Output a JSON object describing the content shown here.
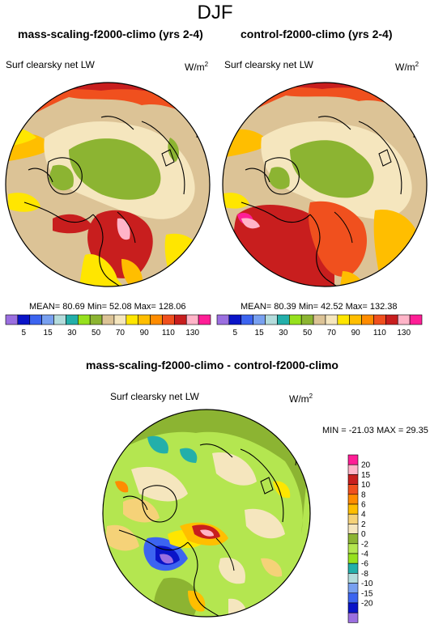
{
  "title": "DJF",
  "panels": [
    {
      "title": "mass-scaling-f2000-climo (yrs 2-4)",
      "variable": "Surf clearsky net LW",
      "units": "W/m",
      "units_exp": "2",
      "stats": "MEAN= 80.69  Min= 52.08  Max= 128.06"
    },
    {
      "title": "control-f2000-climo (yrs 2-4)",
      "variable": "Surf clearsky net LW",
      "units": "W/m",
      "units_exp": "2",
      "stats": "MEAN= 80.39  Min= 42.52  Max= 132.38"
    }
  ],
  "colorbar_top": {
    "colors": [
      "#9b6fe0",
      "#0a14c8",
      "#3c64f0",
      "#78a0f0",
      "#b4dcdc",
      "#23afaa",
      "#96e11e",
      "#8cb432",
      "#dcc396",
      "#f5e6be",
      "#ffe600",
      "#ffbe00",
      "#ff8c00",
      "#f0501e",
      "#c81e1e",
      "#ffb4c8",
      "#ff1e96"
    ],
    "labels": [
      "5",
      "15",
      "30",
      "50",
      "70",
      "90",
      "110",
      "130"
    ]
  },
  "difference": {
    "title": "mass-scaling-f2000-climo - control-f2000-climo",
    "variable": "Surf clearsky net LW",
    "units": "W/m",
    "units_exp": "2",
    "minmax": "MIN = -21.03 MAX =  29.35",
    "colorbar": {
      "colors": [
        "#ff1e96",
        "#ffb4c8",
        "#c81e1e",
        "#f0501e",
        "#ff8c00",
        "#ffbe00",
        "#f5d278",
        "#f5e6be",
        "#8cb432",
        "#b4e650",
        "#96e11e",
        "#23afaa",
        "#b4dcdc",
        "#78a0f0",
        "#3c64f0",
        "#0a14c8",
        "#9b6fe0"
      ],
      "labels": [
        "20",
        "15",
        "10",
        "8",
        "6",
        "4",
        "2",
        "0",
        "-2",
        "-4",
        "-6",
        "-8",
        "-10",
        "-15",
        "-20"
      ]
    }
  }
}
